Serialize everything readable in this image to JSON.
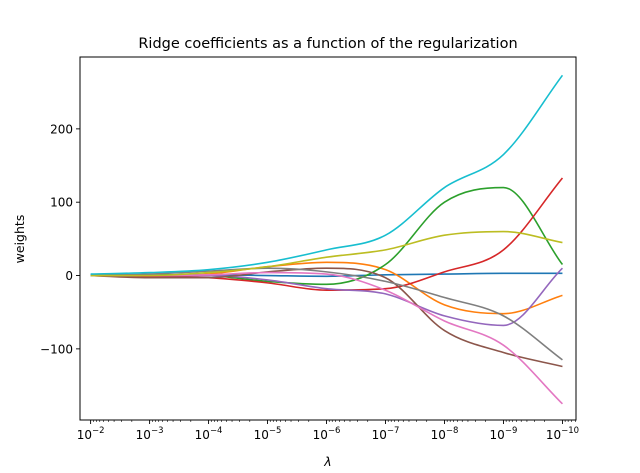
{
  "chart_data": {
    "type": "line",
    "title": "Ridge coefficients as a function of the regularization",
    "xlabel": "λ",
    "ylabel": "weights",
    "x_scale": "log",
    "x_reversed": true,
    "x_ticks": [
      {
        "value": 0.01,
        "base": "10",
        "exp": "−2"
      },
      {
        "value": 0.001,
        "base": "10",
        "exp": "−3"
      },
      {
        "value": 0.0001,
        "base": "10",
        "exp": "−4"
      },
      {
        "value": 1e-05,
        "base": "10",
        "exp": "−5"
      },
      {
        "value": 1e-06,
        "base": "10",
        "exp": "−6"
      },
      {
        "value": 1e-07,
        "base": "10",
        "exp": "−7"
      },
      {
        "value": 1e-08,
        "base": "10",
        "exp": "−8"
      },
      {
        "value": 1e-09,
        "base": "10",
        "exp": "−9"
      },
      {
        "value": 1e-10,
        "base": "10",
        "exp": "−10"
      }
    ],
    "y_ticks": [
      {
        "value": 200,
        "label": "200"
      },
      {
        "value": 100,
        "label": "100"
      },
      {
        "value": 0,
        "label": "0"
      },
      {
        "value": -100,
        "label": "−100"
      }
    ],
    "xlim_exp": [
      -1.82,
      -10.23
    ],
    "ylim": [
      -197,
      298
    ],
    "grid": false,
    "x": [
      0.01,
      0.001,
      0.0001,
      1e-05,
      1e-06,
      1e-07,
      1e-08,
      1e-09,
      1e-10
    ],
    "series": [
      {
        "color": "#1f77b4",
        "values": [
          1,
          1,
          1,
          0,
          -1,
          1,
          2,
          3,
          3
        ]
      },
      {
        "color": "#ff7f0e",
        "values": [
          0,
          -2,
          2,
          12,
          18,
          8,
          -40,
          -52,
          -27
        ]
      },
      {
        "color": "#2ca02c",
        "values": [
          0,
          1,
          0,
          -8,
          -12,
          15,
          100,
          120,
          15
        ]
      },
      {
        "color": "#d62728",
        "values": [
          0,
          -1,
          -3,
          -10,
          -20,
          -18,
          5,
          35,
          133
        ]
      },
      {
        "color": "#9467bd",
        "values": [
          0,
          0,
          0,
          -6,
          -18,
          -25,
          -55,
          -68,
          10
        ]
      },
      {
        "color": "#8c564b",
        "values": [
          0,
          -3,
          -3,
          5,
          10,
          -3,
          -75,
          -105,
          -124
        ]
      },
      {
        "color": "#e377c2",
        "values": [
          0,
          0,
          1,
          4,
          2,
          -20,
          -62,
          -95,
          -175
        ]
      },
      {
        "color": "#7f7f7f",
        "values": [
          0,
          2,
          6,
          10,
          5,
          -8,
          -30,
          -55,
          -115
        ]
      },
      {
        "color": "#bcbd22",
        "values": [
          0,
          0,
          4,
          12,
          25,
          35,
          55,
          60,
          45
        ]
      },
      {
        "color": "#17becf",
        "values": [
          2,
          4,
          8,
          18,
          35,
          55,
          120,
          165,
          273
        ]
      }
    ]
  }
}
